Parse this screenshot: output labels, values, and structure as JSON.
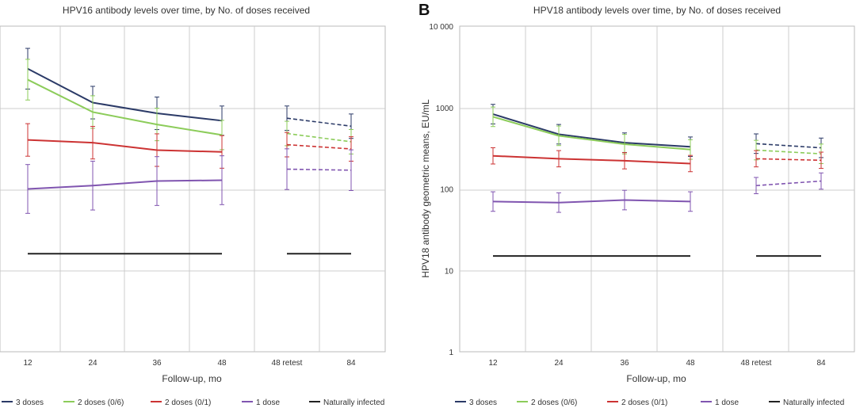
{
  "chart_data": [
    {
      "type": "line",
      "title": "HPV16 antibody levels over time, by No. of doses received",
      "xlabel": "Follow-up, mo",
      "ylabel": "",
      "yscale": "log",
      "ylim": [
        1,
        10000
      ],
      "categories": [
        "12",
        "24",
        "36",
        "48",
        "48 retest",
        "84"
      ],
      "series": [
        {
          "name": "3 doses",
          "color": "#2b3a67",
          "solid": [
            3000,
            1150,
            850,
            690
          ],
          "dashed": [
            740,
            590
          ],
          "err_low": [
            0.25,
            0.2,
            0.2,
            0.18,
            0.15,
            0.15
          ],
          "err_high": [
            0.25,
            0.2,
            0.2,
            0.18,
            0.15,
            0.15
          ]
        },
        {
          "name": "2 doses (0/6)",
          "color": "#8ccc5a",
          "solid": [
            2200,
            880,
            620,
            460
          ],
          "dashed": [
            480,
            380
          ],
          "err_low": [
            0.25,
            0.2,
            0.2,
            0.18,
            0.15,
            0.15
          ],
          "err_high": [
            0.25,
            0.2,
            0.2,
            0.18,
            0.15,
            0.15
          ]
        },
        {
          "name": "2 doses (0/1)",
          "color": "#cc3333",
          "solid": [
            400,
            370,
            300,
            285
          ],
          "dashed": [
            350,
            310
          ],
          "err_low": [
            0.2,
            0.2,
            0.2,
            0.2,
            0.15,
            0.15
          ],
          "err_high": [
            0.2,
            0.2,
            0.2,
            0.2,
            0.15,
            0.15
          ]
        },
        {
          "name": "1 dose",
          "color": "#8055b0",
          "solid": [
            100,
            110,
            125,
            128
          ],
          "dashed": [
            175,
            170
          ],
          "err_low": [
            0.3,
            0.3,
            0.3,
            0.3,
            0.25,
            0.25
          ],
          "err_high": [
            0.3,
            0.3,
            0.3,
            0.3,
            0.25,
            0.25
          ]
        },
        {
          "name": "Naturally infected",
          "color": "#222222",
          "solid": [
            16,
            16,
            16,
            16
          ],
          "dashed": [
            16,
            16
          ],
          "flat": true
        }
      ]
    },
    {
      "type": "line",
      "title": "HPV18 antibody levels over time, by No. of doses received",
      "panel_letter": "B",
      "xlabel": "Follow-up, mo",
      "ylabel": "HPV18 antibody geometric means, EU/mL",
      "yscale": "log",
      "ylim": [
        1,
        10000
      ],
      "ytick_labels": [
        "1",
        "10",
        "100",
        "1000",
        "10 000"
      ],
      "categories": [
        "12",
        "24",
        "36",
        "48",
        "48 retest",
        "84"
      ],
      "series": [
        {
          "name": "3 doses",
          "color": "#2b3a67",
          "solid": [
            830,
            470,
            370,
            330
          ],
          "dashed": [
            360,
            320
          ],
          "err_low": [
            0.12,
            0.12,
            0.12,
            0.12,
            0.12,
            0.12
          ],
          "err_high": [
            0.12,
            0.12,
            0.12,
            0.12,
            0.12,
            0.12
          ]
        },
        {
          "name": "2 doses (0/6)",
          "color": "#8ccc5a",
          "solid": [
            770,
            450,
            355,
            305
          ],
          "dashed": [
            300,
            270
          ],
          "err_low": [
            0.12,
            0.12,
            0.12,
            0.12,
            0.12,
            0.12
          ],
          "err_high": [
            0.12,
            0.12,
            0.12,
            0.12,
            0.12,
            0.12
          ]
        },
        {
          "name": "2 doses (0/1)",
          "color": "#cc3333",
          "solid": [
            255,
            235,
            222,
            205
          ],
          "dashed": [
            235,
            225
          ],
          "err_low": [
            0.1,
            0.1,
            0.1,
            0.1,
            0.1,
            0.1
          ],
          "err_high": [
            0.1,
            0.1,
            0.1,
            0.1,
            0.1,
            0.1
          ]
        },
        {
          "name": "1 dose",
          "color": "#8055b0",
          "solid": [
            70,
            68,
            73,
            70
          ],
          "dashed": [
            110,
            125
          ],
          "err_low": [
            0.12,
            0.12,
            0.12,
            0.12,
            0.1,
            0.1
          ],
          "err_high": [
            0.12,
            0.12,
            0.12,
            0.12,
            0.1,
            0.1
          ]
        },
        {
          "name": "Naturally infected",
          "color": "#222222",
          "solid": [
            15,
            15,
            15,
            15
          ],
          "dashed": [
            15,
            15
          ],
          "flat": true
        }
      ]
    }
  ],
  "legend": [
    {
      "label": "3 doses",
      "color": "#2b3a67"
    },
    {
      "label": "2 doses (0/6)",
      "color": "#8ccc5a"
    },
    {
      "label": "2 doses (0/1)",
      "color": "#cc3333"
    },
    {
      "label": "1 dose",
      "color": "#8055b0"
    },
    {
      "label": "Naturally infected",
      "color": "#222222"
    }
  ]
}
